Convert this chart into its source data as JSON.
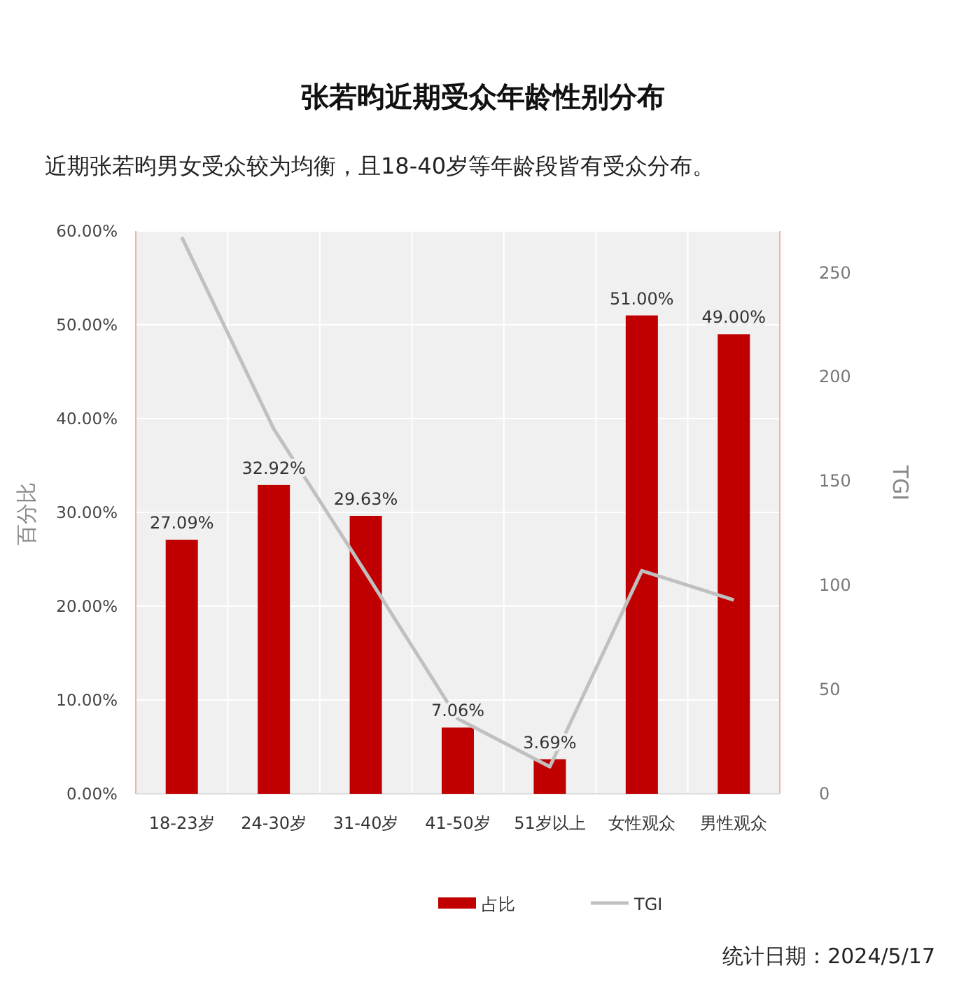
{
  "chart_data": {
    "type": "bar",
    "title": "张若昀近期受众年龄性别分布",
    "subtitle": "近期张若昀男女受众较为均衡，且18-40岁等年龄段皆有受众分布。",
    "ylabel": "百分比",
    "y2label": "TGI",
    "categories": [
      "18-23岁",
      "24-30岁",
      "31-40岁",
      "41-50岁",
      "51岁以上",
      "女性观众",
      "男性观众"
    ],
    "series": [
      {
        "name": "占比",
        "color": "#c00000",
        "values": [
          27.09,
          32.92,
          29.63,
          7.06,
          3.69,
          51.0,
          49.0
        ],
        "value_labels": [
          "27.09%",
          "32.92%",
          "29.63%",
          "7.06%",
          "3.69%",
          "51.00%",
          "49.00%"
        ]
      },
      {
        "name": "TGI",
        "type": "line",
        "axis": "y2",
        "color": "#c0c0c0",
        "values": [
          267,
          175,
          106,
          36,
          13,
          107,
          93
        ]
      }
    ],
    "ylim": [
      0,
      60
    ],
    "yticks": [
      {
        "value": 0,
        "label": "0.00%"
      },
      {
        "value": 10,
        "label": "10.00%"
      },
      {
        "value": 20,
        "label": "20.00%"
      },
      {
        "value": 30,
        "label": "30.00%"
      },
      {
        "value": 40,
        "label": "40.00%"
      },
      {
        "value": 50,
        "label": "50.00%"
      },
      {
        "value": 60,
        "label": "60.00%"
      }
    ],
    "y2lim": [
      0,
      270
    ],
    "y2ticks": [
      0,
      50,
      100,
      150,
      200,
      250
    ],
    "grid": true,
    "legend": "bottom",
    "annotations": [
      "统计日期：2024/5/17"
    ]
  }
}
